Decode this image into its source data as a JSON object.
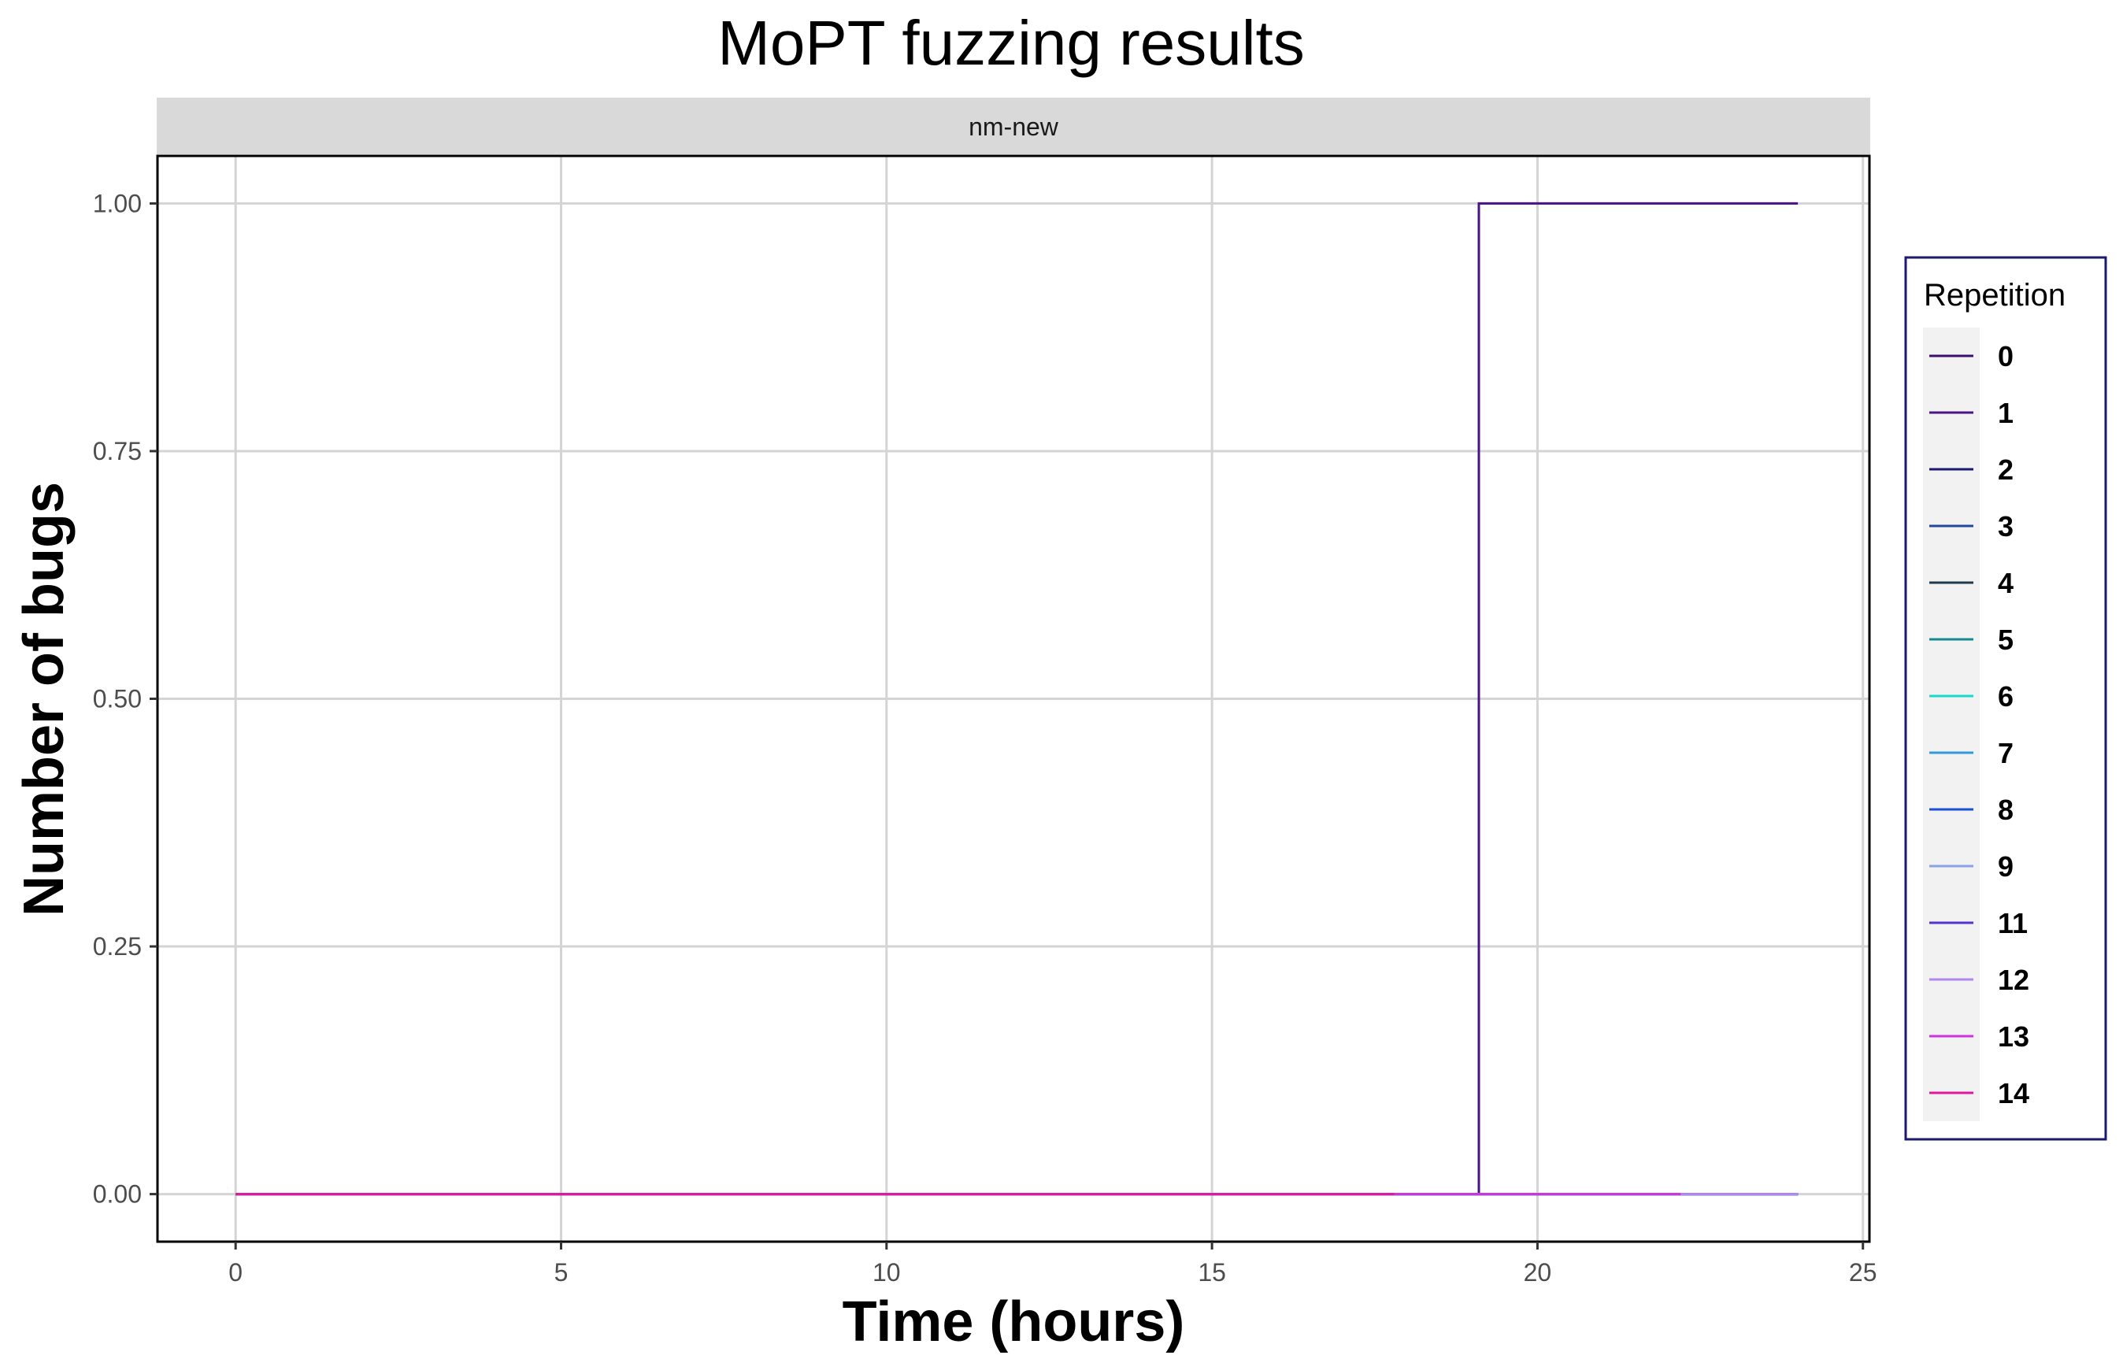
{
  "chart_data": {
    "type": "line",
    "title": "MoPT fuzzing results",
    "facet": "nm-new",
    "xlabel": "Time (hours)",
    "ylabel": "Number of bugs",
    "xlim": [
      -1.2,
      25.1
    ],
    "ylim": [
      -0.048,
      1.048
    ],
    "x_ticks": [
      0,
      5,
      10,
      15,
      20,
      25
    ],
    "x_tick_labels": [
      "0",
      "5",
      "10",
      "15",
      "20",
      "25"
    ],
    "y_ticks": [
      0,
      0.25,
      0.5,
      0.75,
      1.0
    ],
    "y_tick_labels": [
      "0.00",
      "0.25",
      "0.50",
      "0.75",
      "1.00"
    ],
    "grid": true,
    "legend_title": "Repetition",
    "legend_position": "right",
    "series": [
      {
        "name": "0",
        "color": "#3b0f6f",
        "x": [
          0,
          24.0
        ],
        "y": [
          0,
          0
        ]
      },
      {
        "name": "1",
        "color": "#4a1486",
        "x": [
          0,
          19.1,
          19.1,
          24.0
        ],
        "y": [
          0,
          0,
          1,
          1
        ]
      },
      {
        "name": "2",
        "color": "#1a1a6e",
        "x": [
          0,
          24.0
        ],
        "y": [
          0,
          0
        ]
      },
      {
        "name": "3",
        "color": "#24479d",
        "x": [
          0,
          24.0
        ],
        "y": [
          0,
          0
        ]
      },
      {
        "name": "4",
        "color": "#1f3b4d",
        "x": [
          0,
          24.0
        ],
        "y": [
          0,
          0
        ]
      },
      {
        "name": "5",
        "color": "#16898f",
        "x": [
          0,
          24.0
        ],
        "y": [
          0,
          0
        ]
      },
      {
        "name": "6",
        "color": "#19d9c8",
        "x": [
          0,
          24.0
        ],
        "y": [
          0,
          0
        ]
      },
      {
        "name": "7",
        "color": "#3399dd",
        "x": [
          0,
          24.0
        ],
        "y": [
          0,
          0
        ]
      },
      {
        "name": "8",
        "color": "#1c4fd1",
        "x": [
          0,
          24.0
        ],
        "y": [
          0,
          0
        ]
      },
      {
        "name": "9",
        "color": "#8aa3e6",
        "x": [
          0,
          24.0
        ],
        "y": [
          0,
          0
        ]
      },
      {
        "name": "11",
        "color": "#5533cc",
        "x": [
          0,
          24.0
        ],
        "y": [
          0,
          0
        ]
      },
      {
        "name": "12",
        "color": "#b088f0",
        "x": [
          0,
          24.0
        ],
        "y": [
          0,
          0
        ]
      },
      {
        "name": "13",
        "color": "#cc33dd",
        "x": [
          0,
          22.2
        ],
        "y": [
          0,
          0
        ]
      },
      {
        "name": "14",
        "color": "#e0179f",
        "x": [
          0,
          17.8
        ],
        "y": [
          0,
          0
        ]
      }
    ]
  }
}
